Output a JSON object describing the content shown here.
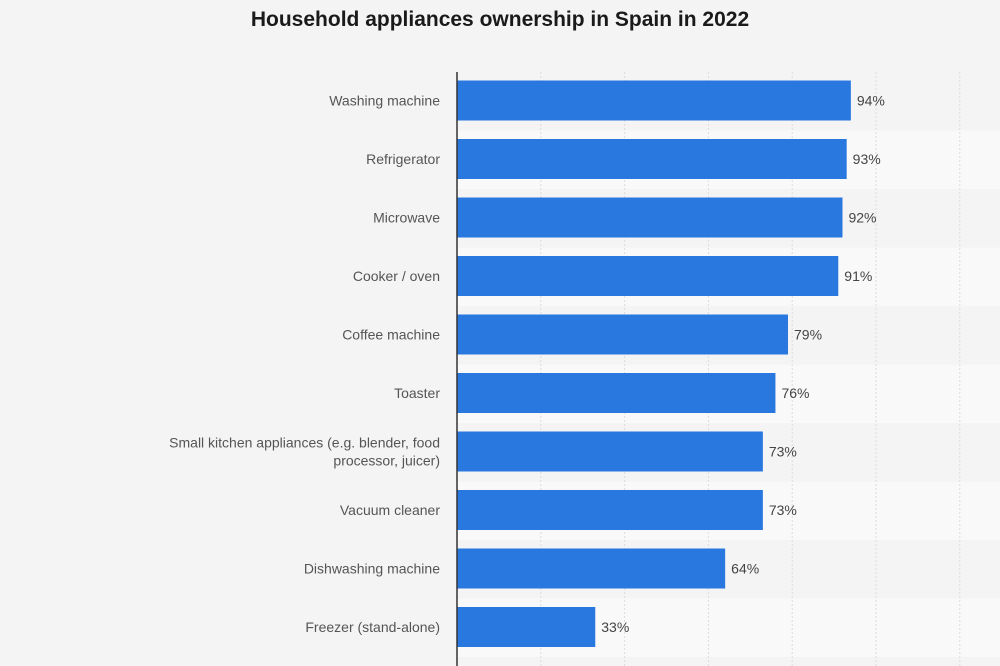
{
  "chart_data": {
    "type": "bar",
    "orientation": "horizontal",
    "title": "Household appliances ownership in Spain in 2022",
    "categories": [
      "Washing machine",
      "Refrigerator",
      "Microwave",
      "Cooker / oven",
      "Coffee machine",
      "Toaster",
      "Small kitchen appliances (e.g. blender, food processor, juicer)",
      "Vacuum cleaner",
      "Dishwashing machine",
      "Freezer (stand-alone)"
    ],
    "category_lines": [
      [
        "Washing machine"
      ],
      [
        "Refrigerator"
      ],
      [
        "Microwave"
      ],
      [
        "Cooker / oven"
      ],
      [
        "Coffee machine"
      ],
      [
        "Toaster"
      ],
      [
        "Small kitchen appliances (e.g. blender, food",
        "processor, juicer)"
      ],
      [
        "Vacuum cleaner"
      ],
      [
        "Dishwashing machine"
      ],
      [
        "Freezer (stand-alone)"
      ]
    ],
    "values": [
      94,
      93,
      92,
      91,
      79,
      76,
      73,
      73,
      64,
      33
    ],
    "value_labels": [
      "94%",
      "93%",
      "92%",
      "91%",
      "79%",
      "76%",
      "73%",
      "73%",
      "64%",
      "33%"
    ],
    "xlim": [
      0,
      120
    ],
    "unit": "%",
    "grid": true,
    "bar_color": "#2878e0"
  }
}
